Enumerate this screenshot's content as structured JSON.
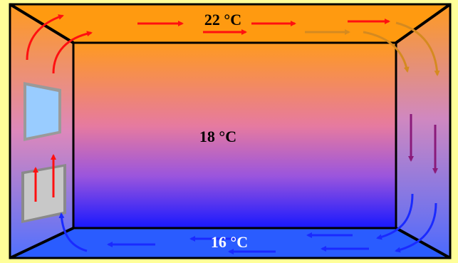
{
  "temperatures": {
    "ceiling": "22 °C",
    "room": "18 °C",
    "floor": "16 °C"
  },
  "colors": {
    "border": "#ffff99",
    "warm": "#ff9a10",
    "mid": "#cc66cc",
    "cool": "#1a1aff",
    "floor_blue": "#2a5cff",
    "window_glass": "#99ccff",
    "radiator": "#c8c8c8",
    "arrow_warm": "#ff1010",
    "arrow_orange": "#d58a20",
    "arrow_purple": "#8a1a7a",
    "arrow_cool": "#1a2aff"
  },
  "objects": [
    "window-icon",
    "radiator-icon"
  ]
}
